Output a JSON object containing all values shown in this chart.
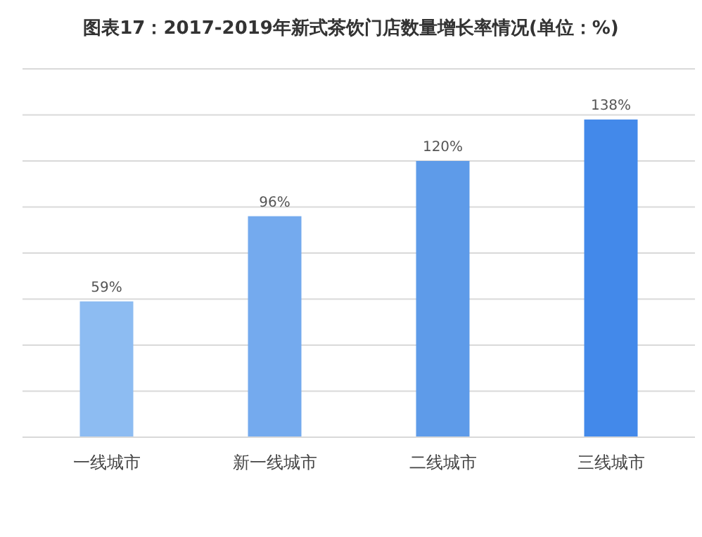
{
  "chart_data": {
    "type": "bar",
    "title": "图表17：2017-2019年新式茶饮门店数量增长率情况(单位：%)",
    "categories": [
      "一线城市",
      "新一线城市",
      "二线城市",
      "三线城市"
    ],
    "values": [
      59,
      96,
      120,
      138
    ],
    "colors": [
      "#8dbcf2",
      "#74aaee",
      "#5e9be9",
      "#4389ea"
    ],
    "value_labels": [
      "59%",
      "96%",
      "120%",
      "138%"
    ],
    "ylim": [
      0,
      160
    ],
    "yticks": [
      {
        "value": 0,
        "label": null
      },
      {
        "value": 20,
        "label": null
      },
      {
        "value": 40,
        "label": null
      },
      {
        "value": 60,
        "label": null
      },
      {
        "value": 80,
        "label": null
      },
      {
        "value": 100,
        "label": null
      },
      {
        "value": 120,
        "label": null
      },
      {
        "value": 140,
        "label": null
      },
      {
        "value": 160,
        "label": null
      }
    ],
    "grid": "y"
  }
}
